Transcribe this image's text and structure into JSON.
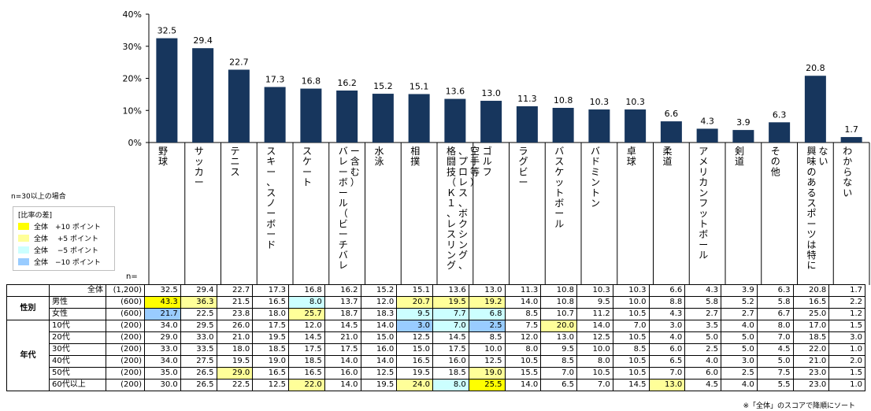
{
  "chart_data": {
    "type": "bar",
    "categories": [
      "野球",
      "サッカー",
      "テニス",
      "スキー・スノーボード",
      "スケート",
      "バレーボール（ビーチバレー含む）",
      "水泳",
      "相撲",
      "格闘技（K-1、レスリング、プロレス、ボクシング、空手等）",
      "ゴルフ",
      "ラグビー",
      "バスケットボール",
      "バドミントン",
      "卓球",
      "柔道",
      "アメリカンフットボール",
      "剣道",
      "その他",
      "興味のあるスポーツは特にない",
      "わからない"
    ],
    "category_labels_vertical": [
      "野球",
      "サッカー",
      "テニス",
      "スキー、スノーボード",
      "スケート",
      "バレーボール（ビーチバレー含む）",
      "水泳",
      "相撲",
      "格闘技（Ｋ１、レスリング、プロレス、ボクシング、空手等）",
      "ゴルフ",
      "ラグビー",
      "バスケットボール",
      "バドミントン",
      "卓球",
      "柔道",
      "アメリカンフットボール",
      "剣道",
      "その他",
      "興味のあるスポーツは特にない",
      "わからない"
    ],
    "values": [
      32.5,
      29.4,
      22.7,
      17.3,
      16.8,
      16.2,
      15.2,
      15.1,
      13.6,
      13.0,
      11.3,
      10.8,
      10.3,
      10.3,
      6.6,
      4.3,
      3.9,
      6.3,
      20.8,
      1.7
    ],
    "data_labels": [
      "32.5",
      "29.4",
      "22.7",
      "17.3",
      "16.8",
      "16.2",
      "15.2",
      "15.1",
      "13.6",
      "13.0",
      "11.3",
      "10.8",
      "10.3",
      "10.3",
      "6.6",
      "4.3",
      "3.9",
      "6.3",
      "20.8",
      "1.7"
    ],
    "ylim": [
      0,
      40
    ],
    "yticks": [
      "0%",
      "10%",
      "20%",
      "30%",
      "40%"
    ],
    "bar_color": "#17365d",
    "group_separators_after": [
      1,
      16,
      17
    ]
  },
  "legend": {
    "title": "[比率の差]",
    "items": [
      {
        "label": "全体　+10 ポイント",
        "color": "#ffff00"
      },
      {
        "label": "全体　 +5 ポイント",
        "color": "#ffff99"
      },
      {
        "label": "全体　 −5 ポイント",
        "color": "#ccffff"
      },
      {
        "label": "全体　−10 ポイント",
        "color": "#99ccff"
      }
    ]
  },
  "labels": {
    "n30": "n=30以上の場合",
    "n_header": "n=",
    "footnote": "※「全体」のスコアで降順にソート"
  },
  "table": {
    "rows": [
      {
        "group": "",
        "label": "全体",
        "n": "(1,200)",
        "values": [
          "32.5",
          "29.4",
          "22.7",
          "17.3",
          "16.8",
          "16.2",
          "15.2",
          "15.1",
          "13.6",
          "13.0",
          "11.3",
          "10.8",
          "10.3",
          "10.3",
          "6.6",
          "4.3",
          "3.9",
          "6.3",
          "20.8",
          "1.7"
        ],
        "hl": [
          0,
          0,
          0,
          0,
          0,
          0,
          0,
          0,
          0,
          0,
          0,
          0,
          0,
          0,
          0,
          0,
          0,
          0,
          0,
          0
        ]
      },
      {
        "group": "性別",
        "label": "男性",
        "n": "(600)",
        "values": [
          "43.3",
          "36.3",
          "21.5",
          "16.5",
          "8.0",
          "13.7",
          "12.0",
          "20.7",
          "19.5",
          "19.2",
          "14.0",
          "10.8",
          "9.5",
          "10.0",
          "8.8",
          "5.8",
          "5.2",
          "5.8",
          "16.5",
          "2.2"
        ],
        "hl": [
          10,
          5,
          0,
          0,
          -5,
          0,
          0,
          5,
          5,
          5,
          0,
          0,
          0,
          0,
          0,
          0,
          0,
          0,
          0,
          0
        ]
      },
      {
        "group": "",
        "label": "女性",
        "n": "(600)",
        "values": [
          "21.7",
          "22.5",
          "23.8",
          "18.0",
          "25.7",
          "18.7",
          "18.3",
          "9.5",
          "7.7",
          "6.8",
          "8.5",
          "10.7",
          "11.2",
          "10.5",
          "4.3",
          "2.7",
          "2.7",
          "6.7",
          "25.0",
          "1.2"
        ],
        "hl": [
          -10,
          0,
          0,
          0,
          5,
          0,
          0,
          -5,
          -5,
          -5,
          0,
          0,
          0,
          0,
          0,
          0,
          0,
          0,
          0,
          0
        ]
      },
      {
        "group": "年代",
        "label": "10代",
        "n": "(200)",
        "values": [
          "34.0",
          "29.5",
          "26.0",
          "17.5",
          "12.0",
          "14.5",
          "14.0",
          "3.0",
          "7.0",
          "2.5",
          "7.5",
          "20.0",
          "14.0",
          "7.0",
          "3.0",
          "3.5",
          "4.0",
          "8.0",
          "17.0",
          "1.5"
        ],
        "hl": [
          0,
          0,
          0,
          0,
          0,
          0,
          0,
          -10,
          -5,
          -10,
          0,
          5,
          0,
          0,
          0,
          0,
          0,
          0,
          0,
          0
        ]
      },
      {
        "group": "",
        "label": "20代",
        "n": "(200)",
        "values": [
          "29.0",
          "33.0",
          "21.0",
          "19.5",
          "14.5",
          "21.0",
          "15.0",
          "12.5",
          "14.5",
          "8.5",
          "12.0",
          "13.0",
          "12.5",
          "10.5",
          "4.0",
          "5.0",
          "5.0",
          "7.0",
          "18.5",
          "3.0"
        ],
        "hl": [
          0,
          0,
          0,
          0,
          0,
          0,
          0,
          0,
          0,
          0,
          0,
          0,
          0,
          0,
          0,
          0,
          0,
          0,
          0,
          0
        ]
      },
      {
        "group": "",
        "label": "30代",
        "n": "(200)",
        "values": [
          "33.0",
          "33.5",
          "18.0",
          "18.5",
          "17.5",
          "17.5",
          "16.0",
          "15.0",
          "17.5",
          "10.0",
          "8.0",
          "9.5",
          "10.0",
          "8.5",
          "6.0",
          "2.5",
          "5.0",
          "4.5",
          "22.0",
          "1.0"
        ],
        "hl": [
          0,
          0,
          0,
          0,
          0,
          0,
          0,
          0,
          0,
          0,
          0,
          0,
          0,
          0,
          0,
          0,
          0,
          0,
          0,
          0
        ]
      },
      {
        "group": "",
        "label": "40代",
        "n": "(200)",
        "values": [
          "34.0",
          "27.5",
          "19.5",
          "19.0",
          "18.5",
          "14.0",
          "14.0",
          "16.5",
          "16.0",
          "12.5",
          "10.5",
          "8.5",
          "8.0",
          "10.5",
          "6.5",
          "4.0",
          "3.0",
          "5.0",
          "21.0",
          "2.0"
        ],
        "hl": [
          0,
          0,
          0,
          0,
          0,
          0,
          0,
          0,
          0,
          0,
          0,
          0,
          0,
          0,
          0,
          0,
          0,
          0,
          0,
          0
        ]
      },
      {
        "group": "",
        "label": "50代",
        "n": "(200)",
        "values": [
          "35.0",
          "26.5",
          "29.0",
          "16.5",
          "16.5",
          "16.0",
          "12.5",
          "19.5",
          "18.5",
          "19.0",
          "15.5",
          "7.0",
          "10.5",
          "10.5",
          "7.0",
          "6.0",
          "2.5",
          "7.5",
          "23.0",
          "1.5"
        ],
        "hl": [
          0,
          0,
          5,
          0,
          0,
          0,
          0,
          0,
          0,
          5,
          0,
          0,
          0,
          0,
          0,
          0,
          0,
          0,
          0,
          0
        ]
      },
      {
        "group": "",
        "label": "60代以上",
        "n": "(200)",
        "values": [
          "30.0",
          "26.5",
          "22.5",
          "12.5",
          "22.0",
          "14.0",
          "19.5",
          "24.0",
          "8.0",
          "25.5",
          "14.0",
          "6.5",
          "7.0",
          "14.5",
          "13.0",
          "4.5",
          "4.0",
          "5.5",
          "23.0",
          "1.0"
        ],
        "hl": [
          0,
          0,
          0,
          0,
          5,
          0,
          0,
          5,
          -5,
          10,
          0,
          0,
          0,
          0,
          5,
          0,
          0,
          0,
          0,
          0
        ]
      }
    ]
  }
}
